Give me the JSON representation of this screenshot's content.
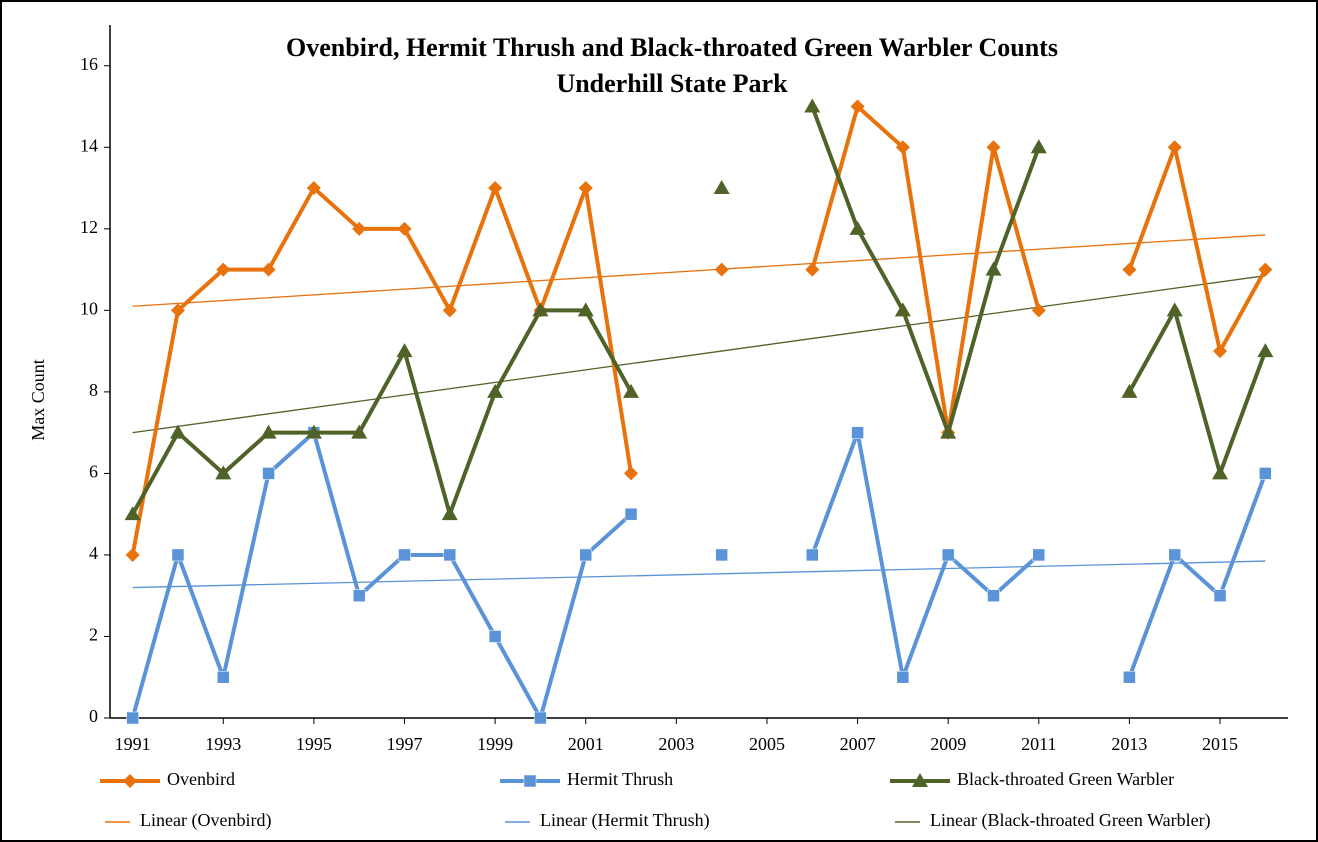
{
  "chart_data": {
    "type": "line",
    "title": "Ovenbird, Hermit Thrush and Black-throated Green Warbler Counts",
    "subtitle": "Underhill State Park",
    "y_label": "Max Count",
    "x": [
      1991,
      1992,
      1993,
      1994,
      1995,
      1996,
      1997,
      1998,
      1999,
      2000,
      2001,
      2002,
      2003,
      2004,
      2005,
      2006,
      2007,
      2008,
      2009,
      2010,
      2011,
      2012,
      2013,
      2014,
      2015,
      2016
    ],
    "series": [
      {
        "name": "Ovenbird",
        "color": "#e8720c",
        "marker": "diamond",
        "values": [
          4,
          10,
          11,
          11,
          13,
          12,
          12,
          10,
          13,
          10,
          13,
          6,
          null,
          11,
          null,
          11,
          15,
          14,
          7,
          14,
          10,
          null,
          11,
          14,
          9,
          11
        ]
      },
      {
        "name": "Hermit Thrush",
        "color": "#5b93d8",
        "marker": "square",
        "values": [
          0,
          4,
          1,
          6,
          7,
          3,
          4,
          4,
          2,
          0,
          4,
          5,
          null,
          4,
          null,
          4,
          7,
          1,
          4,
          3,
          4,
          null,
          1,
          4,
          3,
          6
        ]
      },
      {
        "name": "Black-throated Green Warbler",
        "color": "#4f6228",
        "marker": "triangle",
        "values": [
          5,
          7,
          6,
          7,
          7,
          7,
          9,
          5,
          8,
          10,
          10,
          8,
          null,
          13,
          null,
          15,
          12,
          10,
          7,
          11,
          14,
          null,
          8,
          10,
          6,
          9
        ]
      }
    ],
    "trendlines": [
      {
        "name": "Linear (Ovenbird)",
        "color": "#e8720c",
        "x": [
          1991,
          2016
        ],
        "values": [
          10.1,
          11.85
        ]
      },
      {
        "name": "Linear (Hermit Thrush)",
        "color": "#5b93d8",
        "x": [
          1991,
          2016
        ],
        "values": [
          3.2,
          3.85
        ]
      },
      {
        "name": "Linear (Black-throated Green Warbler)",
        "color": "#4f6228",
        "x": [
          1991,
          2016
        ],
        "values": [
          7.0,
          10.85
        ]
      }
    ],
    "xlim": [
      1990.5,
      2016.5
    ],
    "xticks": [
      1991,
      1993,
      1995,
      1997,
      1999,
      2001,
      2003,
      2005,
      2007,
      2009,
      2011,
      2013,
      2015
    ],
    "ylim": [
      0,
      17
    ],
    "yticks": [
      0,
      2,
      4,
      6,
      8,
      10,
      12,
      14,
      16
    ],
    "grid": false,
    "legend": "bottom"
  }
}
